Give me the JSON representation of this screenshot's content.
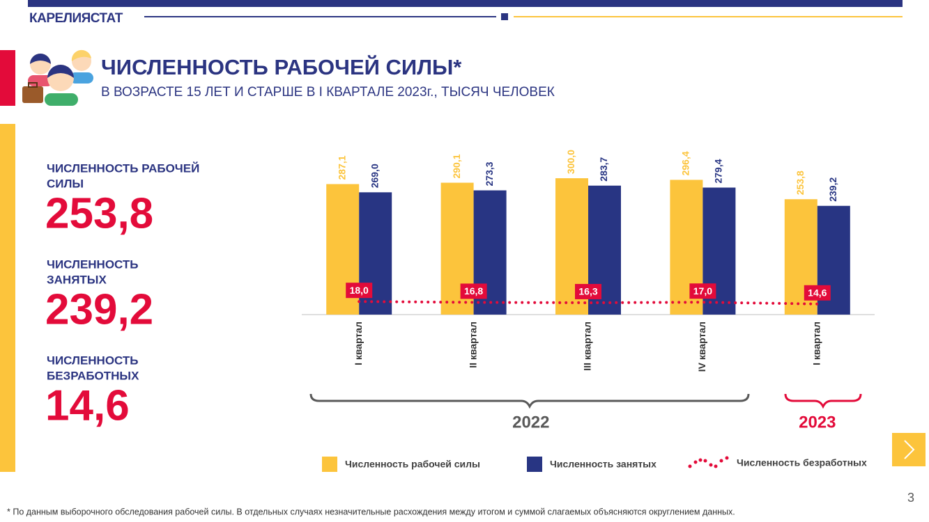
{
  "header": {
    "org": "КАРЕЛИЯСТАТ",
    "title": "ЧИСЛЕННОСТЬ РАБОЧЕЙ СИЛЫ*",
    "subtitle": "В ВОЗРАСТЕ 15 ЛЕТ И СТАРШЕ В I КВАРТАЛЕ 2023г., ТЫСЯЧ ЧЕЛОВЕК"
  },
  "stats": [
    {
      "label": [
        "ЧИСЛЕННОСТЬ РАБОЧЕЙ",
        "СИЛЫ"
      ],
      "value": "253,8"
    },
    {
      "label": [
        "ЧИСЛЕННОСТЬ",
        "ЗАНЯТЫХ"
      ],
      "value": "239,2"
    },
    {
      "label": [
        "ЧИСЛЕННОСТЬ",
        "БЕЗРАБОТНЫХ"
      ],
      "value": "14,6"
    }
  ],
  "chart_data": {
    "type": "bar",
    "categories": [
      "I квартал",
      "II квартал",
      "III квартал",
      "IV квартал",
      "I квартал"
    ],
    "groups": [
      {
        "label": "2022",
        "from": 0,
        "to": 3,
        "color": "#595959"
      },
      {
        "label": "2023",
        "from": 4,
        "to": 4,
        "color": "#e30b3a"
      }
    ],
    "ylim": [
      0,
      320
    ],
    "y2lim": [
      0,
      200
    ],
    "series": [
      {
        "name": "Численность рабочей силы",
        "color": "#fcc43c",
        "values": [
          287.1,
          290.1,
          300.0,
          296.4,
          253.8
        ],
        "value_labels": [
          "287,1",
          "290,1",
          "300,0",
          "296,4",
          "253,8"
        ]
      },
      {
        "name": "Численность занятых",
        "color": "#283583",
        "values": [
          269.0,
          273.3,
          283.7,
          279.4,
          239.2
        ],
        "value_labels": [
          "269,0",
          "273,3",
          "283,7",
          "279,4",
          "239,2"
        ]
      },
      {
        "name": "Численность безработных",
        "color": "#e30b3a",
        "type": "line",
        "axis": "y2",
        "values": [
          18.0,
          16.8,
          16.3,
          17.0,
          14.6
        ],
        "value_labels": [
          "18,0",
          "16,8",
          "16,3",
          "17,0",
          "14,6"
        ]
      }
    ]
  },
  "footnote": "* По данным выборочного обследования рабочей силы. В отдельных случаях незначительные расхождения между итогом и суммой слагаемых объясняются округлением данных.",
  "page_number": "3"
}
